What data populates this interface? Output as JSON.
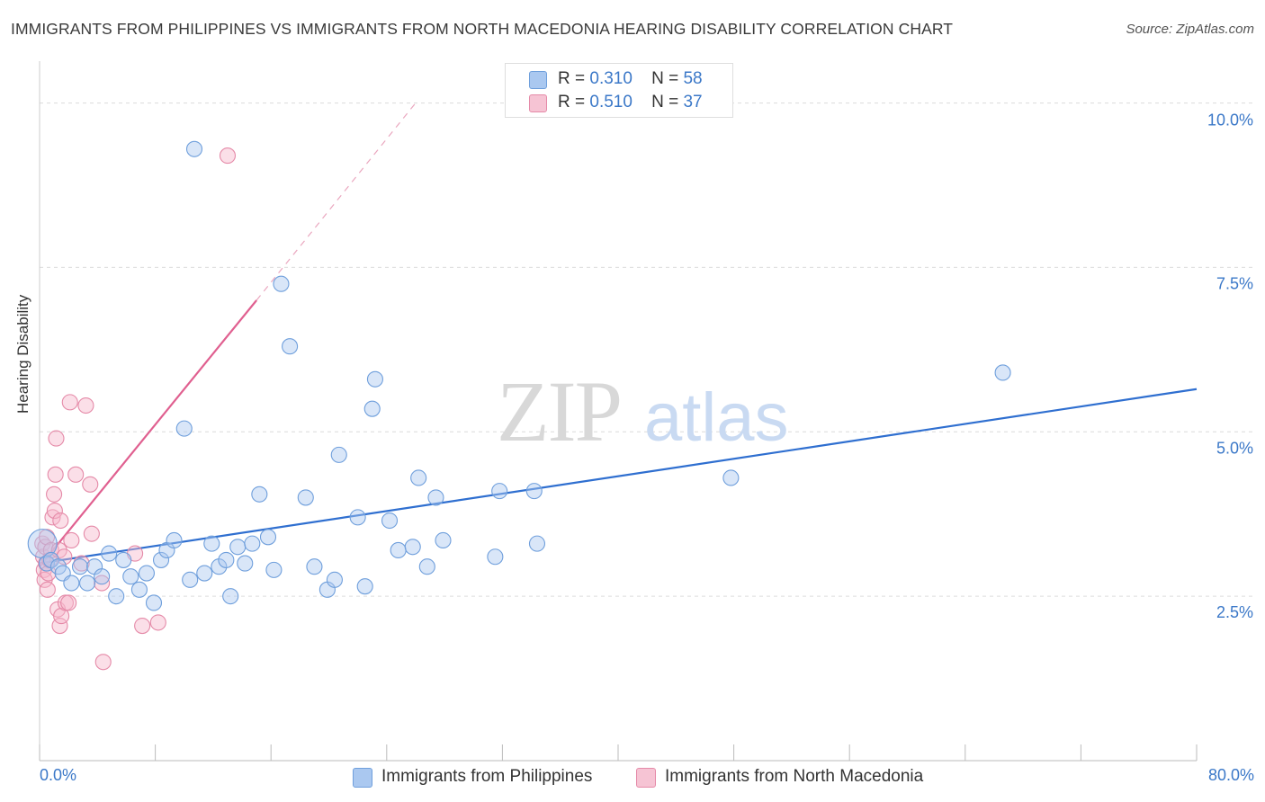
{
  "title": "IMMIGRANTS FROM PHILIPPINES VS IMMIGRANTS FROM NORTH MACEDONIA HEARING DISABILITY CORRELATION CHART",
  "source": "Source: ZipAtlas.com",
  "watermark": {
    "zip": "ZIP",
    "atlas": "atlas"
  },
  "legend_top": [
    {
      "r_label": "R =",
      "r_value": "0.310",
      "n_label": "N =",
      "n_value": "58"
    },
    {
      "r_label": "R =",
      "r_value": "0.510",
      "n_label": "N =",
      "n_value": "37"
    }
  ],
  "colors": {
    "blue_fill": "#aac8f0",
    "blue_stroke": "#6f9fdc",
    "blue_line": "#2f6fd0",
    "pink_fill": "#f6b8cb",
    "pink_stroke": "#e58aa8",
    "pink_line": "#e06090",
    "axis_text": "#3b78c8",
    "grid": "#dcdcdc"
  },
  "chart_data": {
    "type": "scatter",
    "ylabel": "Hearing Disability",
    "xlim": [
      0,
      80
    ],
    "ylim": [
      0,
      10.5
    ],
    "x_tick_labels": [
      "0.0%",
      "80.0%"
    ],
    "y_ticks": [
      {
        "value": 2.5,
        "label": "2.5%"
      },
      {
        "value": 5.0,
        "label": "5.0%"
      },
      {
        "value": 7.5,
        "label": "7.5%"
      },
      {
        "value": 10.0,
        "label": "10.0%"
      }
    ],
    "series": [
      {
        "name": "Immigrants from Philippines",
        "color": "blue",
        "points": [
          [
            0.2,
            3.3
          ],
          [
            0.5,
            3.0
          ],
          [
            0.8,
            3.05
          ],
          [
            1.3,
            2.95
          ],
          [
            1.6,
            2.85
          ],
          [
            2.2,
            2.7
          ],
          [
            2.8,
            2.95
          ],
          [
            3.3,
            2.7
          ],
          [
            3.8,
            2.95
          ],
          [
            4.3,
            2.8
          ],
          [
            4.8,
            3.15
          ],
          [
            5.3,
            2.5
          ],
          [
            5.8,
            3.05
          ],
          [
            6.3,
            2.8
          ],
          [
            6.9,
            2.6
          ],
          [
            7.4,
            2.85
          ],
          [
            7.9,
            2.4
          ],
          [
            8.4,
            3.05
          ],
          [
            8.8,
            3.2
          ],
          [
            9.3,
            3.35
          ],
          [
            10.0,
            5.05
          ],
          [
            10.4,
            2.75
          ],
          [
            10.7,
            9.3
          ],
          [
            11.4,
            2.85
          ],
          [
            11.9,
            3.3
          ],
          [
            12.4,
            2.95
          ],
          [
            12.9,
            3.05
          ],
          [
            13.2,
            2.5
          ],
          [
            13.7,
            3.25
          ],
          [
            14.2,
            3.0
          ],
          [
            14.7,
            3.3
          ],
          [
            15.2,
            4.05
          ],
          [
            15.8,
            3.4
          ],
          [
            16.2,
            2.9
          ],
          [
            16.7,
            7.25
          ],
          [
            17.3,
            6.3
          ],
          [
            18.4,
            4.0
          ],
          [
            19.0,
            2.95
          ],
          [
            19.9,
            2.6
          ],
          [
            20.4,
            2.75
          ],
          [
            20.7,
            4.65
          ],
          [
            22.0,
            3.7
          ],
          [
            22.5,
            2.65
          ],
          [
            23.0,
            5.35
          ],
          [
            23.2,
            5.8
          ],
          [
            24.2,
            3.65
          ],
          [
            24.8,
            3.2
          ],
          [
            25.8,
            3.25
          ],
          [
            26.2,
            4.3
          ],
          [
            26.8,
            2.95
          ],
          [
            27.4,
            4.0
          ],
          [
            27.9,
            3.35
          ],
          [
            31.5,
            3.1
          ],
          [
            31.8,
            4.1
          ],
          [
            34.2,
            4.1
          ],
          [
            34.4,
            3.3
          ],
          [
            47.8,
            4.3
          ],
          [
            66.6,
            5.9
          ]
        ],
        "trend": {
          "x": [
            0,
            80
          ],
          "y": [
            3.0,
            5.65
          ]
        }
      },
      {
        "name": "Immigrants from North Macedonia",
        "color": "pink",
        "points": [
          [
            0.2,
            3.3
          ],
          [
            0.25,
            3.1
          ],
          [
            0.3,
            2.9
          ],
          [
            0.35,
            2.75
          ],
          [
            0.4,
            3.25
          ],
          [
            0.45,
            3.0
          ],
          [
            0.5,
            3.4
          ],
          [
            0.6,
            2.85
          ],
          [
            0.7,
            3.05
          ],
          [
            0.8,
            3.2
          ],
          [
            0.9,
            3.7
          ],
          [
            1.0,
            4.05
          ],
          [
            1.05,
            3.8
          ],
          [
            1.1,
            4.35
          ],
          [
            1.15,
            4.9
          ],
          [
            1.25,
            2.3
          ],
          [
            1.35,
            3.2
          ],
          [
            1.4,
            2.05
          ],
          [
            1.45,
            3.65
          ],
          [
            1.5,
            2.2
          ],
          [
            1.7,
            3.1
          ],
          [
            1.8,
            2.4
          ],
          [
            2.0,
            2.4
          ],
          [
            2.1,
            5.45
          ],
          [
            2.2,
            3.35
          ],
          [
            2.5,
            4.35
          ],
          [
            2.9,
            3.0
          ],
          [
            3.2,
            5.4
          ],
          [
            3.5,
            4.2
          ],
          [
            3.6,
            3.45
          ],
          [
            4.3,
            2.7
          ],
          [
            4.4,
            1.5
          ],
          [
            6.6,
            3.15
          ],
          [
            7.1,
            2.05
          ],
          [
            8.2,
            2.1
          ],
          [
            13.0,
            9.2
          ],
          [
            0.55,
            2.6
          ]
        ],
        "trend_solid": {
          "x": [
            0,
            15
          ],
          "y": [
            2.95,
            7.0
          ]
        },
        "trend_dashed": {
          "x": [
            15,
            26
          ],
          "y": [
            7.0,
            10.0
          ]
        }
      }
    ]
  }
}
